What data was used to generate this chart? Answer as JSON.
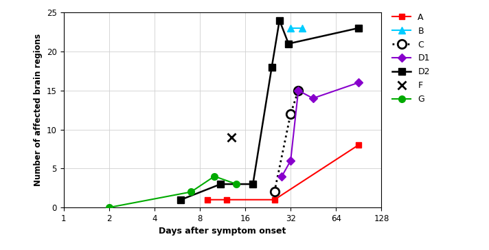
{
  "series": {
    "A": {
      "x": [
        9,
        12,
        25,
        90
      ],
      "y": [
        1,
        1,
        1,
        8
      ],
      "color": "#ff0000",
      "marker": "s",
      "linestyle": "-",
      "markersize": 6,
      "linewidth": 1.5,
      "label": "A"
    },
    "B": {
      "x": [
        32,
        38
      ],
      "y": [
        23,
        23
      ],
      "color": "#00ccff",
      "marker": "^",
      "linestyle": "-",
      "markersize": 7,
      "linewidth": 1.5,
      "label": "B"
    },
    "C": {
      "x": [
        25,
        32,
        36
      ],
      "y": [
        2,
        12,
        15
      ],
      "color": "#000000",
      "marker": "o",
      "linestyle": ":",
      "markersize": 9,
      "linewidth": 2.0,
      "open_marker": true,
      "label": "C"
    },
    "D1": {
      "x": [
        28,
        32,
        36,
        45,
        90
      ],
      "y": [
        4,
        6,
        15,
        14,
        16
      ],
      "color": "#8800cc",
      "marker": "D",
      "linestyle": "-",
      "markersize": 6,
      "linewidth": 1.5,
      "label": "D1"
    },
    "D2": {
      "x": [
        6,
        11,
        18,
        24,
        27,
        31,
        90
      ],
      "y": [
        1,
        3,
        3,
        18,
        24,
        21,
        23
      ],
      "color": "#000000",
      "marker": "s",
      "linestyle": "-",
      "markersize": 7,
      "linewidth": 1.8,
      "label": "D2"
    },
    "F": {
      "x": [
        13
      ],
      "y": [
        9
      ],
      "color": "#000000",
      "marker": "x",
      "linestyle": "none",
      "markersize": 9,
      "markeredgewidth": 2.0,
      "linewidth": 0,
      "label": "F"
    },
    "G": {
      "x": [
        2,
        7,
        10,
        14
      ],
      "y": [
        0,
        2,
        4,
        3
      ],
      "color": "#00aa00",
      "marker": "o",
      "linestyle": "-",
      "markersize": 7,
      "linewidth": 1.5,
      "label": "G"
    }
  },
  "xlabel": "Days after symptom onset",
  "ylabel": "Number of affected brain regions",
  "xlim": [
    1,
    128
  ],
  "ylim": [
    0,
    25
  ],
  "xticks": [
    1,
    2,
    4,
    8,
    16,
    32,
    64,
    128
  ],
  "yticks": [
    0,
    5,
    10,
    15,
    20,
    25
  ],
  "grid": true,
  "background_color": "#ffffff",
  "figsize": [
    7.12,
    3.64
  ],
  "dpi": 100
}
